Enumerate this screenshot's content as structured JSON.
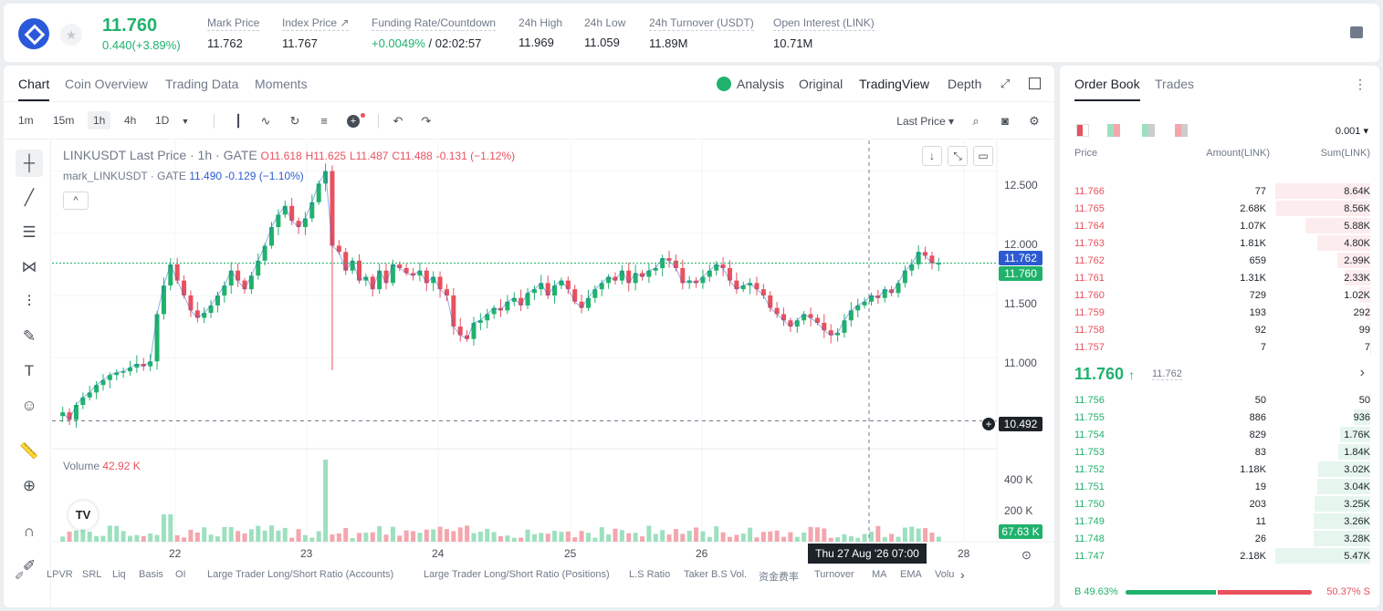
{
  "header": {
    "price": "11.760",
    "change": "0.440(+3.89%)",
    "stats": [
      {
        "label": "Mark Price",
        "value": "11.762"
      },
      {
        "label": "Index Price ↗",
        "value": "11.767"
      },
      {
        "label": "Funding Rate/Countdown",
        "value_green": "+0.0049%",
        "value": " / 02:02:57"
      },
      {
        "label": "24h High",
        "value": "11.969"
      },
      {
        "label": "24h Low",
        "value": "11.059"
      },
      {
        "label": "24h Turnover (USDT)",
        "value": "11.89M"
      },
      {
        "label": "Open Interest (LINK)",
        "value": "10.71M"
      }
    ]
  },
  "tabs": [
    "Chart",
    "Coin Overview",
    "Trading Data",
    "Moments"
  ],
  "view_tabs": [
    "Analysis",
    "Original",
    "TradingView",
    "Depth"
  ],
  "timeframes": [
    "1m",
    "15m",
    "1h",
    "4h",
    "1D"
  ],
  "toolbar": {
    "last_price": "Last Price"
  },
  "legend": {
    "title": "LINKUSDT Last Price · 1h · GATE",
    "o": "O11.618",
    "h": "H11.625",
    "l": "L11.487",
    "c": "C11.488",
    "chg": "-0.131 (−1.12%)",
    "mark": "mark_LINKUSDT · GATE",
    "mark_vals": "11.490 -0.129 (−1.10%)",
    "volume": "Volume",
    "volume_val": "42.92 K"
  },
  "chart_data": {
    "type": "candlestick",
    "y_ticks": [
      "12.500",
      "12.000",
      "11.500",
      "11.000"
    ],
    "vol_ticks": [
      "400 K",
      "200 K"
    ],
    "x_ticks": [
      "22",
      "23",
      "24",
      "25",
      "26",
      "28"
    ],
    "mark_price": "11.762",
    "last_price": "11.760",
    "cross_price": "10.492",
    "vol_tag": "67.63 K",
    "cross_time": "Thu 27 Aug '26   07:00",
    "closes": [
      10.56,
      10.5,
      10.62,
      10.68,
      10.72,
      10.78,
      10.82,
      10.86,
      10.88,
      10.89,
      10.92,
      10.95,
      10.93,
      10.97,
      11.35,
      11.58,
      11.75,
      11.62,
      11.5,
      11.38,
      11.32,
      11.36,
      11.42,
      11.5,
      11.58,
      11.7,
      11.62,
      11.55,
      11.66,
      11.78,
      11.9,
      12.05,
      12.15,
      12.22,
      12.1,
      12.05,
      12.12,
      12.25,
      12.4,
      12.5,
      11.9,
      11.85,
      11.7,
      11.78,
      11.62,
      11.65,
      11.55,
      11.7,
      11.6,
      11.75,
      11.72,
      11.68,
      11.66,
      11.7,
      11.6,
      11.65,
      11.55,
      11.5,
      11.25,
      11.18,
      11.15,
      11.28,
      11.3,
      11.35,
      11.4,
      11.38,
      11.45,
      11.48,
      11.42,
      11.52,
      11.55,
      11.6,
      11.5,
      11.58,
      11.62,
      11.55,
      11.45,
      11.4,
      11.48,
      11.55,
      11.6,
      11.65,
      11.62,
      11.7,
      11.6,
      11.68,
      11.65,
      11.7,
      11.72,
      11.8,
      11.78,
      11.72,
      11.6,
      11.62,
      11.6,
      11.65,
      11.7,
      11.75,
      11.72,
      11.62,
      11.55,
      11.58,
      11.6,
      11.55,
      11.5,
      11.4,
      11.35,
      11.3,
      11.25,
      11.3,
      11.35,
      11.32,
      11.28,
      11.22,
      11.18,
      11.2,
      11.3,
      11.38,
      11.42,
      11.45,
      11.5,
      11.48,
      11.55,
      11.52,
      11.6,
      11.7,
      11.75,
      11.85,
      11.82,
      11.76,
      11.76
    ]
  },
  "orderbook": {
    "tabs": [
      "Order Book",
      "Trades"
    ],
    "precision": "0.001",
    "headers": [
      "Price",
      "Amount(LINK)",
      "Sum(LINK)"
    ],
    "asks": [
      [
        "11.766",
        "77",
        "8.64K",
        1.0
      ],
      [
        "11.765",
        "2.68K",
        "8.56K",
        0.99
      ],
      [
        "11.764",
        "1.07K",
        "5.88K",
        0.68
      ],
      [
        "11.763",
        "1.81K",
        "4.80K",
        0.56
      ],
      [
        "11.762",
        "659",
        "2.99K",
        0.35
      ],
      [
        "11.761",
        "1.31K",
        "2.33K",
        0.27
      ],
      [
        "11.760",
        "729",
        "1.02K",
        0.12
      ],
      [
        "11.759",
        "193",
        "292",
        0.034
      ],
      [
        "11.758",
        "92",
        "99",
        0.012
      ],
      [
        "11.757",
        "7",
        "7",
        0.001
      ]
    ],
    "mid": "11.760",
    "mid_arrow": "↑",
    "mid_mark": "11.762",
    "bids": [
      [
        "11.756",
        "50",
        "50",
        0.009
      ],
      [
        "11.755",
        "886",
        "936",
        0.17
      ],
      [
        "11.754",
        "829",
        "1.76K",
        0.32
      ],
      [
        "11.753",
        "83",
        "1.84K",
        0.34
      ],
      [
        "11.752",
        "1.18K",
        "3.02K",
        0.55
      ],
      [
        "11.751",
        "19",
        "3.04K",
        0.56
      ],
      [
        "11.750",
        "203",
        "3.25K",
        0.59
      ],
      [
        "11.749",
        "11",
        "3.26K",
        0.6
      ],
      [
        "11.748",
        "26",
        "3.28K",
        0.6
      ],
      [
        "11.747",
        "2.18K",
        "5.47K",
        1.0
      ]
    ],
    "buy_ratio": "B 49.63%",
    "sell_ratio": "50.37% S",
    "buy_fraction": 0.4963
  },
  "indicators": [
    "LPVR",
    "SRL",
    "Liq",
    "Basis",
    "OI",
    "Large Trader Long/Short Ratio (Accounts)",
    "Large Trader Long/Short Ratio (Positions)",
    "L.S Ratio",
    "Taker B.S Vol.",
    "资金费率",
    "Turnover",
    "MA",
    "EMA",
    "Volu"
  ],
  "colors": {
    "up": "#20b26c",
    "down": "#e8515d",
    "mark": "#2c5bd1"
  }
}
